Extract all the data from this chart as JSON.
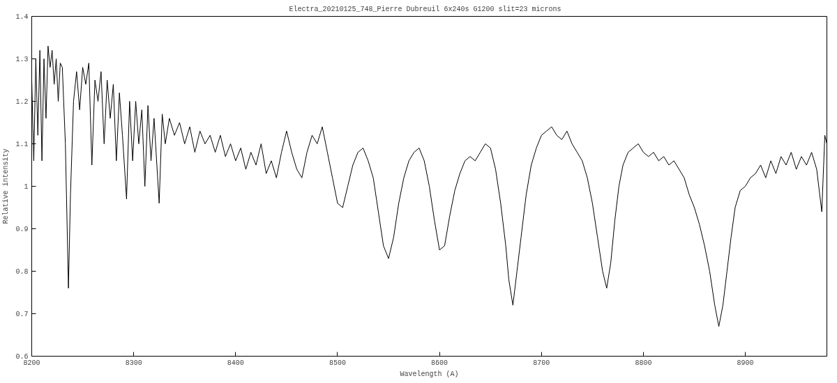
{
  "chart_data": {
    "type": "line",
    "title": "Electra_20210125_748_Pierre Dubreuil  6x240s  G1200 slit=23 microns",
    "xlabel": "Wavelength (A)",
    "ylabel": "Relative intensity",
    "xlim": [
      8200,
      8980
    ],
    "ylim": [
      0.6,
      1.4
    ],
    "xticks": [
      8200,
      8300,
      8400,
      8500,
      8600,
      8700,
      8800,
      8900
    ],
    "yticks": [
      0.6,
      0.7,
      0.8,
      0.9,
      1,
      1.1,
      1.2,
      1.3,
      1.4
    ],
    "marker": "none",
    "line_style": "solid",
    "series": [
      {
        "color": "#000000",
        "x": [
          8200,
          8202,
          8204,
          8206,
          8208,
          8210,
          8212,
          8214,
          8216,
          8218,
          8220,
          8222,
          8224,
          8226,
          8228,
          8230,
          8233,
          8236,
          8238,
          8241,
          8244,
          8247,
          8250,
          8253,
          8256,
          8259,
          8262,
          8265,
          8268,
          8271,
          8274,
          8277,
          8280,
          8283,
          8286,
          8289,
          8293,
          8296,
          8299,
          8302,
          8305,
          8308,
          8311,
          8314,
          8317,
          8320,
          8322,
          8325,
          8328,
          8331,
          8335,
          8340,
          8345,
          8350,
          8355,
          8360,
          8365,
          8370,
          8375,
          8380,
          8385,
          8390,
          8395,
          8400,
          8405,
          8410,
          8415,
          8420,
          8425,
          8430,
          8435,
          8440,
          8445,
          8450,
          8455,
          8460,
          8465,
          8470,
          8475,
          8480,
          8485,
          8490,
          8495,
          8500,
          8505,
          8510,
          8515,
          8520,
          8525,
          8530,
          8535,
          8540,
          8545,
          8550,
          8555,
          8560,
          8565,
          8570,
          8575,
          8580,
          8585,
          8590,
          8595,
          8600,
          8605,
          8610,
          8615,
          8620,
          8625,
          8630,
          8635,
          8640,
          8645,
          8650,
          8655,
          8660,
          8665,
          8668,
          8672,
          8676,
          8680,
          8685,
          8690,
          8695,
          8700,
          8705,
          8710,
          8715,
          8720,
          8725,
          8730,
          8735,
          8740,
          8745,
          8750,
          8755,
          8760,
          8764,
          8768,
          8772,
          8776,
          8780,
          8785,
          8790,
          8795,
          8800,
          8805,
          8810,
          8815,
          8820,
          8825,
          8830,
          8835,
          8840,
          8845,
          8850,
          8855,
          8860,
          8865,
          8870,
          8874,
          8878,
          8882,
          8886,
          8890,
          8895,
          8900,
          8905,
          8910,
          8915,
          8920,
          8925,
          8930,
          8935,
          8940,
          8945,
          8950,
          8955,
          8960,
          8965,
          8970,
          8975,
          8978,
          8980
        ],
        "values": [
          1.25,
          1.06,
          1.3,
          1.12,
          1.32,
          1.06,
          1.3,
          1.16,
          1.33,
          1.28,
          1.32,
          1.24,
          1.3,
          1.2,
          1.29,
          1.28,
          1.1,
          0.76,
          0.98,
          1.2,
          1.27,
          1.18,
          1.28,
          1.24,
          1.29,
          1.05,
          1.25,
          1.2,
          1.27,
          1.1,
          1.25,
          1.16,
          1.24,
          1.06,
          1.22,
          1.12,
          0.97,
          1.2,
          1.06,
          1.2,
          1.1,
          1.18,
          1.0,
          1.19,
          1.06,
          1.16,
          1.08,
          0.96,
          1.17,
          1.1,
          1.16,
          1.12,
          1.15,
          1.1,
          1.14,
          1.08,
          1.13,
          1.1,
          1.12,
          1.08,
          1.12,
          1.07,
          1.1,
          1.06,
          1.09,
          1.04,
          1.08,
          1.05,
          1.1,
          1.03,
          1.06,
          1.02,
          1.08,
          1.13,
          1.08,
          1.04,
          1.02,
          1.08,
          1.12,
          1.1,
          1.14,
          1.08,
          1.02,
          0.96,
          0.95,
          1.0,
          1.05,
          1.08,
          1.09,
          1.06,
          1.02,
          0.94,
          0.86,
          0.83,
          0.88,
          0.96,
          1.02,
          1.06,
          1.08,
          1.09,
          1.06,
          1.0,
          0.92,
          0.85,
          0.86,
          0.93,
          0.99,
          1.03,
          1.06,
          1.07,
          1.06,
          1.08,
          1.1,
          1.09,
          1.04,
          0.96,
          0.86,
          0.78,
          0.72,
          0.8,
          0.88,
          0.98,
          1.05,
          1.09,
          1.12,
          1.13,
          1.14,
          1.12,
          1.11,
          1.13,
          1.1,
          1.08,
          1.06,
          1.02,
          0.96,
          0.88,
          0.8,
          0.76,
          0.82,
          0.92,
          1.0,
          1.05,
          1.08,
          1.09,
          1.1,
          1.08,
          1.07,
          1.08,
          1.06,
          1.07,
          1.05,
          1.06,
          1.04,
          1.02,
          0.98,
          0.95,
          0.91,
          0.86,
          0.8,
          0.72,
          0.67,
          0.72,
          0.8,
          0.88,
          0.95,
          0.99,
          1.0,
          1.02,
          1.03,
          1.05,
          1.02,
          1.06,
          1.03,
          1.07,
          1.05,
          1.08,
          1.04,
          1.07,
          1.05,
          1.08,
          1.04,
          0.94,
          1.12,
          1.1
        ]
      }
    ]
  }
}
